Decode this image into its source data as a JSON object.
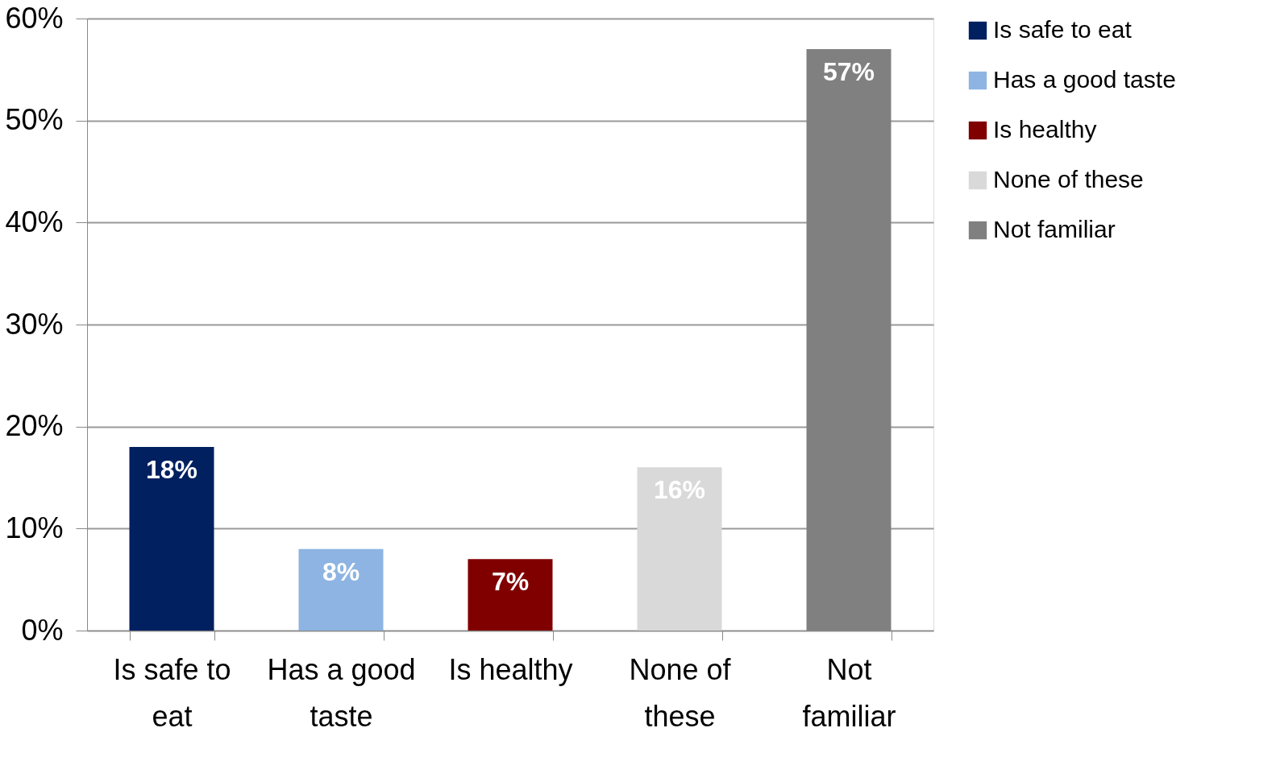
{
  "chart_data": {
    "type": "bar",
    "categories": [
      "Is safe to eat",
      "Has a good taste",
      "Is healthy",
      "None of these",
      "Not familiar"
    ],
    "series": [
      {
        "name": "Is safe to eat",
        "color": "#002060",
        "values": [
          18,
          null,
          null,
          null,
          null
        ],
        "value_labels": [
          "18%",
          null,
          null,
          null,
          null
        ]
      },
      {
        "name": "Has a good taste",
        "color": "#8db4e2",
        "values": [
          null,
          8,
          null,
          null,
          null
        ],
        "value_labels": [
          null,
          "8%",
          null,
          null,
          null
        ]
      },
      {
        "name": "Is healthy",
        "color": "#800000",
        "values": [
          null,
          null,
          7,
          null,
          null
        ],
        "value_labels": [
          null,
          null,
          "7%",
          null,
          null
        ]
      },
      {
        "name": "None of these",
        "color": "#d9d9d9",
        "values": [
          null,
          null,
          null,
          16,
          null
        ],
        "value_labels": [
          null,
          null,
          null,
          "16%",
          null
        ]
      },
      {
        "name": "Not familiar",
        "color": "#808080",
        "values": [
          null,
          null,
          null,
          null,
          57
        ],
        "value_labels": [
          null,
          null,
          null,
          null,
          "57%"
        ]
      }
    ],
    "ylim": [
      0,
      60
    ],
    "yticks": [
      {
        "value": 0,
        "label": "0%"
      },
      {
        "value": 10,
        "label": "10%"
      },
      {
        "value": 20,
        "label": "20%"
      },
      {
        "value": 30,
        "label": "30%"
      },
      {
        "value": 40,
        "label": "40%"
      },
      {
        "value": 50,
        "label": "50%"
      },
      {
        "value": 60,
        "label": "60%"
      }
    ],
    "grid": "y",
    "legend": "right"
  }
}
